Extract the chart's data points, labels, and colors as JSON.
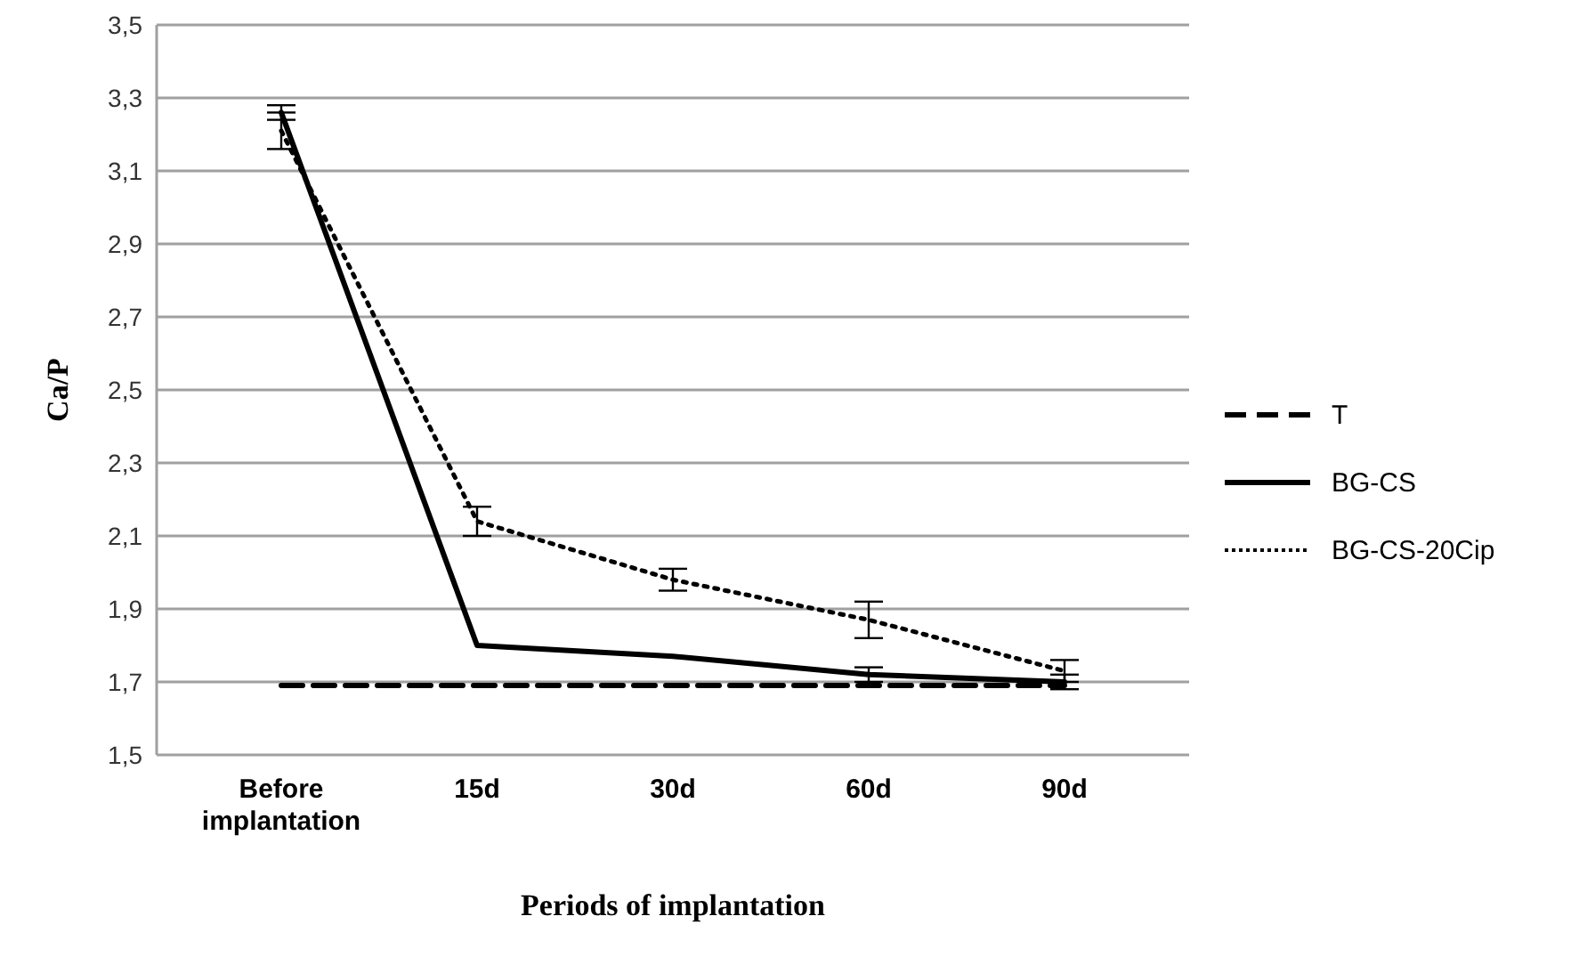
{
  "chart_data": {
    "type": "line",
    "xlabel": "Periods of implantation",
    "ylabel": "Ca/P",
    "categories": [
      "Before implantation",
      "15d",
      "30d",
      "60d",
      "90d"
    ],
    "series": [
      {
        "name": "T",
        "color": "#000000",
        "line_style": "dashed",
        "values": [
          1.69,
          1.69,
          1.69,
          1.69,
          1.69
        ]
      },
      {
        "name": "BG-CS",
        "color": "#000000",
        "line_style": "solid",
        "values": [
          3.26,
          1.8,
          1.77,
          1.72,
          1.7
        ],
        "errors": [
          0.02,
          null,
          null,
          0.02,
          0.02
        ]
      },
      {
        "name": "BG-CS-20Cip",
        "color": "#000000",
        "line_style": "dotted",
        "values": [
          3.21,
          2.14,
          1.98,
          1.87,
          1.73
        ],
        "errors": [
          0.05,
          0.04,
          0.03,
          0.05,
          0.03
        ]
      }
    ],
    "ylim": [
      1.5,
      3.5
    ],
    "yticks": [
      {
        "value": 1.5,
        "label": "1,5"
      },
      {
        "value": 1.7,
        "label": "1,7"
      },
      {
        "value": 1.9,
        "label": "1,9"
      },
      {
        "value": 2.1,
        "label": "2,1"
      },
      {
        "value": 2.3,
        "label": "2,3"
      },
      {
        "value": 2.5,
        "label": "2,5"
      },
      {
        "value": 2.7,
        "label": "2,7"
      },
      {
        "value": 2.9,
        "label": "2,9"
      },
      {
        "value": 3.1,
        "label": "3,1"
      },
      {
        "value": 3.3,
        "label": "3,3"
      },
      {
        "value": 3.5,
        "label": "3,5"
      }
    ],
    "grid": "y",
    "legend": "right",
    "marker": "none"
  }
}
